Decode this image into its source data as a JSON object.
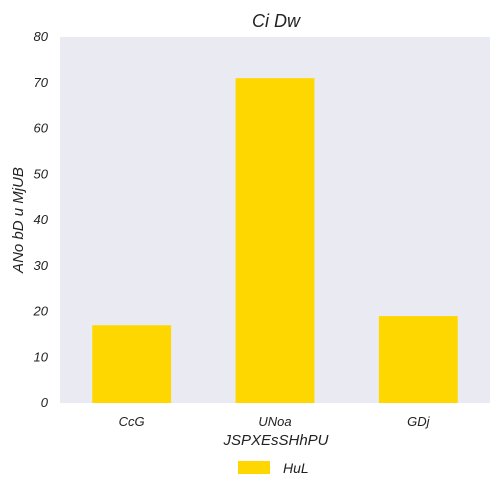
{
  "chart_data": {
    "type": "bar",
    "title": "Ci Dw",
    "xlabel": "JSPXEsSHhPU",
    "ylabel": "ANo bD u MjUB",
    "categories": [
      "CcG",
      "UNoa",
      "GDj"
    ],
    "series": [
      {
        "name": "HuL",
        "values": [
          17,
          71,
          19
        ],
        "color": "#FFD700"
      }
    ],
    "ylim": [
      0,
      80
    ],
    "yticks": [
      0,
      10,
      20,
      30,
      40,
      50,
      60,
      70,
      80
    ],
    "grid": false,
    "legend_position": "bottom-center",
    "plot_background": "#EAEAF2"
  }
}
